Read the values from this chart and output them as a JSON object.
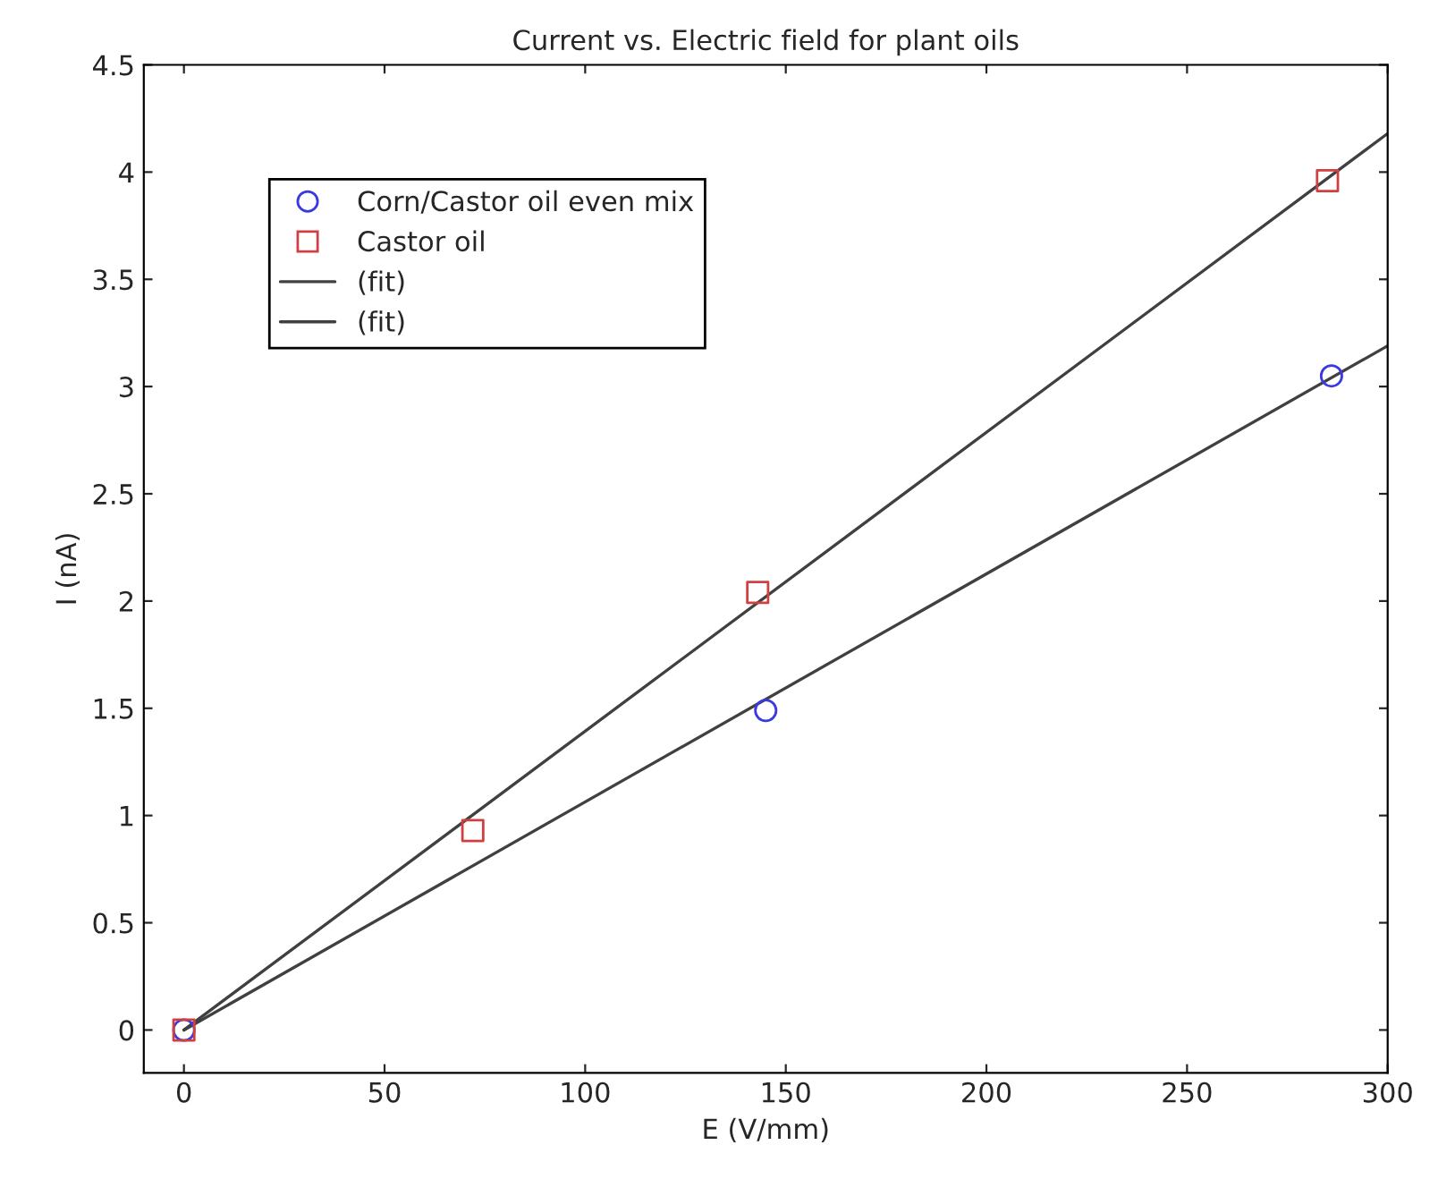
{
  "chart_data": {
    "type": "scatter",
    "title": "Current vs. Electric field for plant oils",
    "xlabel": "E (V/mm)",
    "ylabel": "I (nA)",
    "xlim": [
      -10,
      300
    ],
    "ylim": [
      -0.2,
      4.5
    ],
    "xticks": [
      0,
      50,
      100,
      150,
      200,
      250,
      300
    ],
    "yticks": [
      0,
      0.5,
      1,
      1.5,
      2,
      2.5,
      3,
      3.5,
      4,
      4.5
    ],
    "grid": false,
    "legend": "top left",
    "series": [
      {
        "name": "Corn/Castor oil even mix",
        "marker": "circle",
        "color": "#3a3ae0",
        "x": [
          0,
          145,
          286
        ],
        "values": [
          0,
          1.49,
          3.05
        ]
      },
      {
        "name": "Castor oil",
        "marker": "square",
        "color": "#d04040",
        "x": [
          0,
          72,
          143,
          285
        ],
        "values": [
          0,
          0.93,
          2.04,
          3.96
        ]
      },
      {
        "name": "(fit)",
        "type": "line",
        "marker": "none",
        "line_style": "solid",
        "color": "#404040",
        "x": [
          0,
          300
        ],
        "values": [
          0,
          4.18
        ]
      },
      {
        "name": "(fit)",
        "type": "line",
        "marker": "none",
        "line_style": "solid",
        "color": "#404040",
        "x": [
          0,
          300
        ],
        "values": [
          0,
          3.19
        ]
      }
    ]
  }
}
